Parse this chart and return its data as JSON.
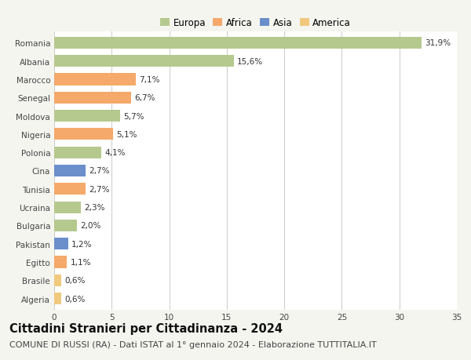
{
  "categories": [
    "Algeria",
    "Brasile",
    "Egitto",
    "Pakistan",
    "Bulgaria",
    "Ucraina",
    "Tunisia",
    "Cina",
    "Polonia",
    "Nigeria",
    "Moldova",
    "Senegal",
    "Marocco",
    "Albania",
    "Romania"
  ],
  "values": [
    0.6,
    0.6,
    1.1,
    1.2,
    2.0,
    2.3,
    2.7,
    2.7,
    4.1,
    5.1,
    5.7,
    6.7,
    7.1,
    15.6,
    31.9
  ],
  "labels": [
    "0,6%",
    "0,6%",
    "1,1%",
    "1,2%",
    "2,0%",
    "2,3%",
    "2,7%",
    "2,7%",
    "4,1%",
    "5,1%",
    "5,7%",
    "6,7%",
    "7,1%",
    "15,6%",
    "31,9%"
  ],
  "colors": [
    "#f0c97f",
    "#f0c97f",
    "#f5a96a",
    "#6a8fca",
    "#b5c98e",
    "#b5c98e",
    "#f5a96a",
    "#6a8fca",
    "#b5c98e",
    "#f5a96a",
    "#b5c98e",
    "#f5a96a",
    "#f5a96a",
    "#b5c98e",
    "#b5c98e"
  ],
  "continent_colors": {
    "Europa": "#b5c98e",
    "Africa": "#f5a96a",
    "Asia": "#6a8fca",
    "America": "#f0c97f"
  },
  "title": "Cittadini Stranieri per Cittadinanza - 2024",
  "subtitle": "COMUNE DI RUSSI (RA) - Dati ISTAT al 1° gennaio 2024 - Elaborazione TUTTITALIA.IT",
  "xlim": [
    0,
    35
  ],
  "xticks": [
    0,
    5,
    10,
    15,
    20,
    25,
    30,
    35
  ],
  "background_color": "#f5f5f0",
  "bar_background": "#ffffff",
  "grid_color": "#cccccc",
  "title_fontsize": 10.5,
  "subtitle_fontsize": 8,
  "label_fontsize": 7.5,
  "tick_fontsize": 7.5,
  "legend_fontsize": 8.5
}
